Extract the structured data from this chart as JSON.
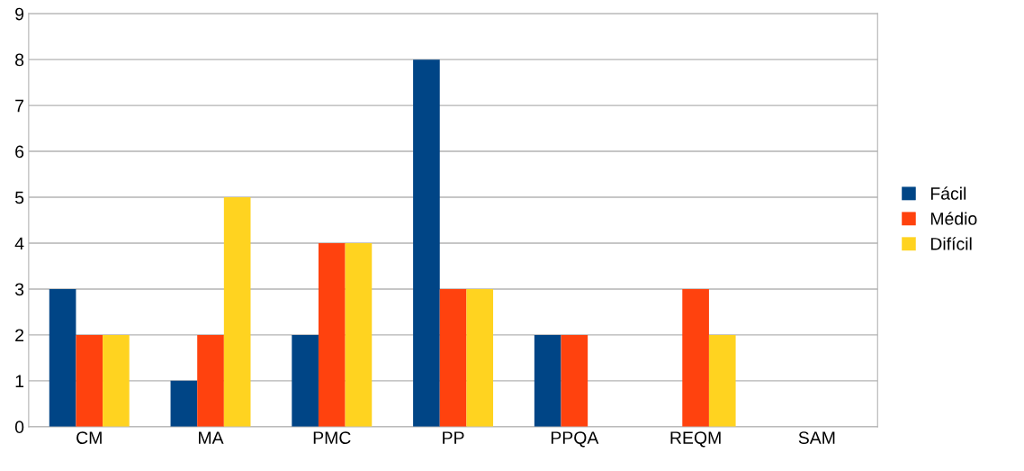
{
  "chart_data": {
    "type": "bar",
    "categories": [
      "CM",
      "MA",
      "PMC",
      "PP",
      "PPQA",
      "REQM",
      "SAM"
    ],
    "series": [
      {
        "name": "Fácil",
        "color": "#004586",
        "values": [
          3,
          1,
          2,
          8,
          2,
          0,
          0
        ]
      },
      {
        "name": "Médio",
        "color": "#ff420e",
        "values": [
          2,
          2,
          4,
          3,
          2,
          3,
          0
        ]
      },
      {
        "name": "Difícil",
        "color": "#ffd320",
        "values": [
          2,
          5,
          4,
          3,
          0,
          2,
          0
        ]
      }
    ],
    "ylim": [
      0,
      9
    ],
    "yticks": [
      0,
      1,
      2,
      3,
      4,
      5,
      6,
      7,
      8,
      9
    ],
    "grid": "y",
    "legend": "right"
  }
}
